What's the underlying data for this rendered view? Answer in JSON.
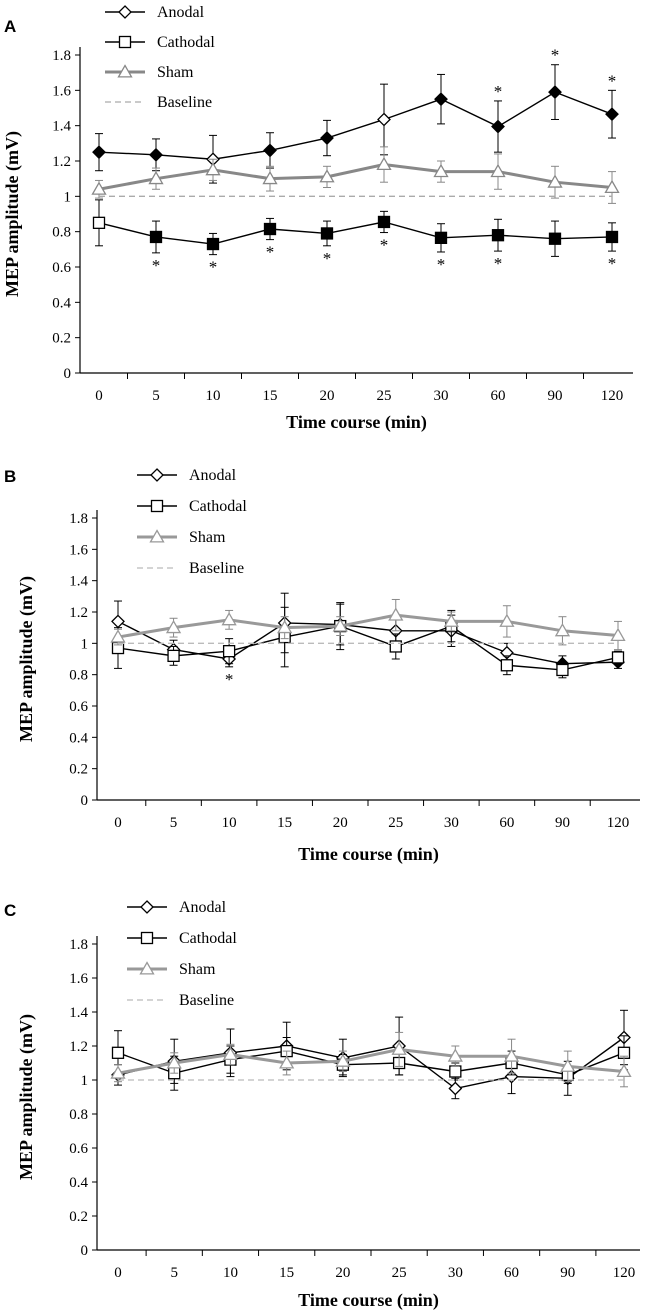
{
  "chart_data": [
    {
      "panel_label": "A",
      "type": "line",
      "xlabel": "Time course (min)",
      "ylabel": "MEP amplitude (mV)",
      "categories": [
        "0",
        "5",
        "10",
        "15",
        "20",
        "25",
        "30",
        "60",
        "90",
        "120"
      ],
      "ylim": [
        0,
        1.8
      ],
      "yticks": [
        "0",
        "0.2",
        "0.4",
        "0.6",
        "0.8",
        "1",
        "1.2",
        "1.4",
        "1.6",
        "1.8"
      ],
      "grid": false,
      "legend": "top-left",
      "series": [
        {
          "name": "Anodal",
          "marker": "diamond",
          "color": "#000000",
          "values": [
            1.25,
            1.235,
            1.21,
            1.26,
            1.33,
            1.435,
            1.55,
            1.395,
            1.59,
            1.465
          ],
          "errors": [
            0.105,
            0.09,
            0.135,
            0.1,
            0.1,
            0.2,
            0.14,
            0.145,
            0.155,
            0.135
          ],
          "filled": [
            true,
            true,
            false,
            true,
            true,
            false,
            true,
            true,
            true,
            true
          ]
        },
        {
          "name": "Cathodal",
          "marker": "square",
          "color": "#000000",
          "values": [
            0.85,
            0.77,
            0.73,
            0.815,
            0.79,
            0.855,
            0.765,
            0.78,
            0.76,
            0.77
          ],
          "errors": [
            0.13,
            0.09,
            0.06,
            0.06,
            0.07,
            0.06,
            0.08,
            0.09,
            0.1,
            0.08
          ],
          "filled": [
            false,
            true,
            true,
            true,
            true,
            true,
            true,
            true,
            true,
            true
          ]
        },
        {
          "name": "Sham",
          "marker": "triangle",
          "color": "#888888",
          "values": [
            1.04,
            1.1,
            1.15,
            1.1,
            1.11,
            1.18,
            1.14,
            1.14,
            1.08,
            1.05
          ],
          "errors": [
            0.05,
            0.06,
            0.06,
            0.07,
            0.06,
            0.1,
            0.06,
            0.1,
            0.09,
            0.09
          ],
          "filled": [
            false,
            false,
            false,
            false,
            false,
            false,
            false,
            false,
            false,
            false
          ]
        },
        {
          "name": "Baseline",
          "marker": "none",
          "color": "#aaaaaa",
          "dashed": true,
          "values": [
            1,
            1,
            1,
            1,
            1,
            1,
            1,
            1,
            1,
            1
          ]
        }
      ],
      "annotations": [
        {
          "text": "*",
          "category": "60",
          "position": "above",
          "series": "Anodal"
        },
        {
          "text": "*",
          "category": "90",
          "position": "above",
          "series": "Anodal"
        },
        {
          "text": "*",
          "category": "120",
          "position": "above",
          "series": "Anodal"
        },
        {
          "text": "*",
          "category": "5",
          "position": "below",
          "series": "Cathodal"
        },
        {
          "text": "*",
          "category": "10",
          "position": "below",
          "series": "Cathodal"
        },
        {
          "text": "*",
          "category": "15",
          "position": "below",
          "series": "Cathodal"
        },
        {
          "text": "*",
          "category": "20",
          "position": "below",
          "series": "Cathodal"
        },
        {
          "text": "*",
          "category": "25",
          "position": "below",
          "series": "Cathodal"
        },
        {
          "text": "*",
          "category": "30",
          "position": "below",
          "series": "Cathodal"
        },
        {
          "text": "*",
          "category": "60",
          "position": "below",
          "series": "Cathodal"
        },
        {
          "text": "*",
          "category": "120",
          "position": "below",
          "series": "Cathodal"
        }
      ]
    },
    {
      "panel_label": "B",
      "type": "line",
      "xlabel": "Time course (min)",
      "ylabel": "MEP amplitude (mV)",
      "categories": [
        "0",
        "5",
        "10",
        "15",
        "20",
        "25",
        "30",
        "60",
        "90",
        "120"
      ],
      "ylim": [
        0,
        1.8
      ],
      "yticks": [
        "0",
        "0.2",
        "0.4",
        "0.6",
        "0.8",
        "1",
        "1.2",
        "1.4",
        "1.6",
        "1.8"
      ],
      "grid": false,
      "legend": "top-left",
      "series": [
        {
          "name": "Anodal",
          "marker": "diamond",
          "color": "#000000",
          "values": [
            1.14,
            0.96,
            0.9,
            1.13,
            1.12,
            1.08,
            1.08,
            0.94,
            0.87,
            0.88
          ],
          "errors": [
            0.13,
            0.06,
            0.05,
            0.19,
            0.13,
            0.1,
            0.1,
            0.06,
            0.05,
            0.04
          ],
          "filled": [
            false,
            false,
            false,
            false,
            false,
            false,
            false,
            false,
            true,
            true
          ]
        },
        {
          "name": "Cathodal",
          "marker": "square",
          "color": "#000000",
          "values": [
            0.97,
            0.92,
            0.95,
            1.04,
            1.11,
            0.98,
            1.11,
            0.86,
            0.83,
            0.91
          ],
          "errors": [
            0.13,
            0.06,
            0.08,
            0.19,
            0.15,
            0.08,
            0.1,
            0.06,
            0.05,
            0.04
          ],
          "filled": [
            false,
            false,
            false,
            false,
            false,
            false,
            false,
            false,
            false,
            false
          ]
        },
        {
          "name": "Sham",
          "marker": "triangle",
          "color": "#999999",
          "values": [
            1.04,
            1.1,
            1.15,
            1.1,
            1.11,
            1.18,
            1.14,
            1.14,
            1.08,
            1.05
          ],
          "errors": [
            0.05,
            0.06,
            0.06,
            0.07,
            0.06,
            0.1,
            0.06,
            0.1,
            0.09,
            0.09
          ],
          "filled": [
            false,
            false,
            false,
            false,
            false,
            false,
            false,
            false,
            false,
            false
          ]
        },
        {
          "name": "Baseline",
          "marker": "none",
          "color": "#bbbbbb",
          "dashed": true,
          "values": [
            1,
            1,
            1,
            1,
            1,
            1,
            1,
            1,
            1,
            1
          ]
        }
      ],
      "annotations": [
        {
          "text": "*",
          "category": "10",
          "position": "below",
          "series": "Anodal"
        }
      ]
    },
    {
      "panel_label": "C",
      "type": "line",
      "xlabel": "Time course (min)",
      "ylabel": "MEP amplitude (mV)",
      "categories": [
        "0",
        "5",
        "10",
        "15",
        "20",
        "25",
        "30",
        "60",
        "90",
        "120"
      ],
      "ylim": [
        0,
        1.8
      ],
      "yticks": [
        "0",
        "0.2",
        "0.4",
        "0.6",
        "0.8",
        "1",
        "1.2",
        "1.4",
        "1.6",
        "1.8"
      ],
      "grid": false,
      "legend": "top-left",
      "series": [
        {
          "name": "Anodal",
          "marker": "diamond",
          "color": "#000000",
          "values": [
            1.03,
            1.11,
            1.16,
            1.2,
            1.13,
            1.2,
            0.95,
            1.02,
            1.01,
            1.25
          ],
          "errors": [
            0.06,
            0.13,
            0.14,
            0.14,
            0.11,
            0.17,
            0.06,
            0.1,
            0.1,
            0.16
          ],
          "filled": [
            false,
            false,
            false,
            false,
            false,
            false,
            false,
            false,
            false,
            false
          ]
        },
        {
          "name": "Cathodal",
          "marker": "square",
          "color": "#000000",
          "values": [
            1.16,
            1.04,
            1.12,
            1.17,
            1.09,
            1.1,
            1.05,
            1.1,
            1.03,
            1.16
          ],
          "errors": [
            0.13,
            0.1,
            0.08,
            0.08,
            0.06,
            0.07,
            0.05,
            0.07,
            0.05,
            0.1
          ],
          "filled": [
            false,
            false,
            false,
            false,
            false,
            false,
            false,
            false,
            false,
            false
          ]
        },
        {
          "name": "Sham",
          "marker": "triangle",
          "color": "#999999",
          "values": [
            1.04,
            1.1,
            1.15,
            1.1,
            1.11,
            1.18,
            1.14,
            1.14,
            1.08,
            1.05
          ],
          "errors": [
            0.05,
            0.06,
            0.06,
            0.07,
            0.06,
            0.1,
            0.06,
            0.1,
            0.09,
            0.09
          ],
          "filled": [
            false,
            false,
            false,
            false,
            false,
            false,
            false,
            false,
            false,
            false
          ]
        },
        {
          "name": "Baseline",
          "marker": "none",
          "color": "#bbbbbb",
          "dashed": true,
          "values": [
            1,
            1,
            1,
            1,
            1,
            1,
            1,
            1,
            1,
            1
          ]
        }
      ],
      "annotations": []
    }
  ]
}
